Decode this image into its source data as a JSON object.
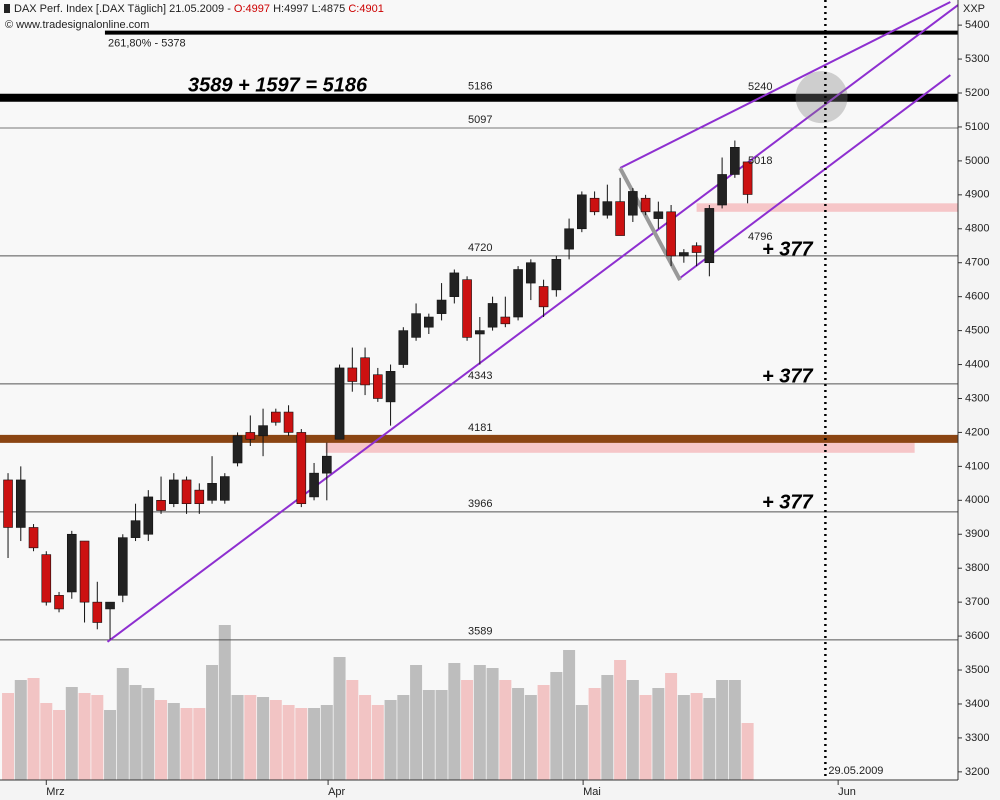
{
  "chart_data": {
    "type": "candlestick",
    "title": "DAX Perf. Index [.DAX  Täglich] 21.05.2009 -",
    "ohlc_labels": [
      "O:4997",
      "H:4997",
      "L:4875",
      "C:4901"
    ],
    "source": "© www.tradesignalonline.com",
    "y_axis_label": "XXP",
    "up_color": "#222222",
    "down_color": "#cc1111",
    "volume_up_color": "#bdbdbd",
    "volume_down_color": "#f2c4c4",
    "line_color": "#8e2fd0",
    "zone_color": "#f6c6c8",
    "ylim": [
      3176,
      5474
    ],
    "yticks": [
      3200,
      3300,
      3400,
      3500,
      3600,
      3700,
      3800,
      3900,
      4000,
      4100,
      4200,
      4300,
      4400,
      4500,
      4600,
      4700,
      4800,
      4900,
      5000,
      5100,
      5200,
      5300,
      5400
    ],
    "xlim": [
      -0.63,
      74.5
    ],
    "xticks": [
      {
        "value": 3,
        "label": "Mrz"
      },
      {
        "value": 25.1,
        "label": "Apr"
      },
      {
        "value": 45.1,
        "label": "Mai"
      },
      {
        "value": 65.1,
        "label": "Jun"
      }
    ],
    "x": [
      0,
      1,
      2,
      3,
      4,
      5,
      6,
      7,
      8,
      9,
      10,
      11,
      12,
      13,
      14,
      15,
      16,
      17,
      18,
      19,
      20,
      21,
      22,
      23,
      24,
      25,
      26,
      27,
      28,
      29,
      30,
      31,
      32,
      33,
      34,
      35,
      36,
      37,
      38,
      39,
      40,
      41,
      42,
      43,
      44,
      45,
      46,
      47,
      48,
      49,
      50,
      51,
      52,
      53,
      54,
      55,
      56,
      57,
      58
    ],
    "open": [
      4060,
      3920,
      3920,
      3840,
      3720,
      3730,
      3880,
      3700,
      3680,
      3720,
      3890,
      3900,
      4000,
      3990,
      4060,
      4030,
      4000,
      4000,
      4110,
      4200,
      4190,
      4260,
      4260,
      4200,
      4010,
      4080,
      4180,
      4390,
      4420,
      4370,
      4290,
      4400,
      4480,
      4510,
      4550,
      4600,
      4650,
      4490,
      4510,
      4540,
      4540,
      4640,
      4630,
      4620,
      4740,
      4800,
      4890,
      4840,
      4880,
      4840,
      4890,
      4830,
      4850,
      4720,
      4750,
      4700,
      4870,
      4960,
      4997
    ],
    "high": [
      4080,
      4100,
      3930,
      3850,
      3730,
      3910,
      3880,
      3760,
      3700,
      3900,
      3990,
      4030,
      4070,
      4080,
      4070,
      4050,
      4130,
      4080,
      4200,
      4250,
      4270,
      4270,
      4280,
      4210,
      4110,
      4170,
      4400,
      4450,
      4450,
      4390,
      4400,
      4510,
      4580,
      4550,
      4640,
      4680,
      4660,
      4540,
      4600,
      4600,
      4690,
      4710,
      4650,
      4720,
      4830,
      4910,
      4910,
      4930,
      4950,
      4920,
      4900,
      4880,
      4870,
      4740,
      4760,
      4870,
      5010,
      5060,
      4997
    ],
    "low": [
      3830,
      3880,
      3850,
      3690,
      3670,
      3710,
      3640,
      3620,
      3590,
      3700,
      3880,
      3880,
      3960,
      3980,
      3960,
      3960,
      3990,
      3990,
      4100,
      4160,
      4130,
      4220,
      4190,
      3980,
      4000,
      4000,
      4180,
      4320,
      4310,
      4290,
      4220,
      4390,
      4470,
      4490,
      4530,
      4580,
      4470,
      4400,
      4500,
      4510,
      4530,
      4590,
      4540,
      4600,
      4710,
      4790,
      4840,
      4830,
      4780,
      4820,
      4840,
      4800,
      4690,
      4700,
      4690,
      4660,
      4860,
      4950,
      4875
    ],
    "close": [
      3920,
      4060,
      3860,
      3700,
      3680,
      3900,
      3700,
      3640,
      3700,
      3890,
      3940,
      4010,
      3970,
      4060,
      3990,
      3990,
      4050,
      4070,
      4190,
      4180,
      4220,
      4230,
      4200,
      3990,
      4080,
      4130,
      4390,
      4350,
      4340,
      4300,
      4380,
      4500,
      4550,
      4540,
      4590,
      4670,
      4480,
      4500,
      4580,
      4520,
      4680,
      4700,
      4570,
      4710,
      4800,
      4900,
      4850,
      4880,
      4780,
      4910,
      4850,
      4850,
      4720,
      4730,
      4730,
      4860,
      4960,
      5040,
      4901
    ],
    "volume": [
      87,
      100,
      102,
      77,
      70,
      93,
      87,
      85,
      70,
      112,
      95,
      92,
      80,
      77,
      72,
      72,
      115,
      155,
      85,
      85,
      83,
      80,
      75,
      72,
      72,
      75,
      123,
      100,
      85,
      75,
      80,
      85,
      115,
      90,
      90,
      117,
      100,
      115,
      112,
      100,
      92,
      85,
      95,
      108,
      130,
      75,
      92,
      105,
      120,
      100,
      85,
      92,
      107,
      85,
      87,
      82,
      100,
      100,
      57
    ],
    "volume_lim": [
      0,
      160
    ],
    "levels": [
      5378,
      5186,
      5097,
      4720,
      4343,
      4181,
      3966,
      3589
    ],
    "fib_label": "261,80% - 5378",
    "trend_lines": [
      [
        [
          48,
          4979
        ],
        [
          73.9,
          5468
        ]
      ],
      [
        [
          7.8,
          3583
        ],
        [
          74.5,
          5459
        ]
      ],
      [
        [
          52.7,
          4655
        ],
        [
          73.9,
          5253
        ]
      ]
    ],
    "grey_line": [
      [
        48,
        4979
      ],
      [
        52.7,
        4649
      ]
    ],
    "zones": [
      [
        54,
        74.5,
        4850,
        4875
      ],
      [
        24.9,
        71.1,
        4140,
        4190
      ]
    ],
    "target_circle": [
      63.8,
      5188
    ],
    "date_line": 64.1,
    "date_label": "29.05.2009",
    "channel_labels": [
      "5240",
      "5018",
      "4796"
    ],
    "annotations": [
      "3589 + 1597 = 5186",
      "+ 377",
      "+ 377",
      "+ 377"
    ]
  }
}
